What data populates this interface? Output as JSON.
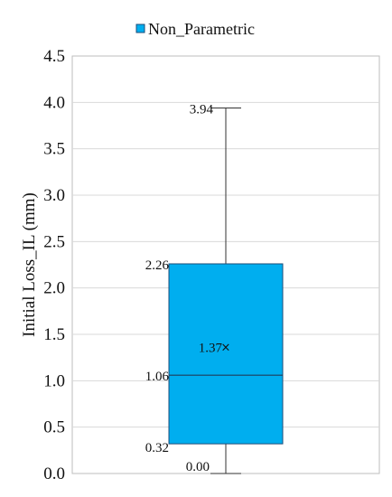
{
  "chart_data": {
    "type": "boxplot",
    "title": "",
    "xlabel": "",
    "ylabel": "Initial Loss_IL  (mm)",
    "ylim": [
      0,
      4.5
    ],
    "y_ticks": [
      "0.0",
      "0.5",
      "1.0",
      "1.5",
      "2.0",
      "2.5",
      "3.0",
      "3.5",
      "4.0",
      "4.5"
    ],
    "grid": true,
    "legend": {
      "placement": "top",
      "entries": [
        "Non_Parametric"
      ]
    },
    "series": [
      {
        "name": "Non_Parametric",
        "color": "#00AEEF",
        "min": 0.0,
        "q1": 0.32,
        "median": 1.06,
        "mean": 1.37,
        "q3": 2.26,
        "max": 3.94,
        "labels": {
          "min": "0.00",
          "q1": "0.32",
          "median": "1.06",
          "mean": "1.37",
          "q3": "2.26",
          "max": "3.94"
        }
      }
    ]
  }
}
